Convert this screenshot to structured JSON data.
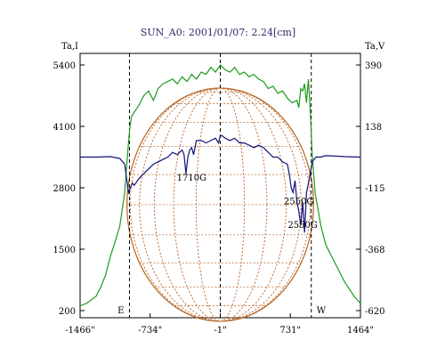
{
  "chart_data": {
    "type": "line",
    "title": "SUN_A0: 2001/01/07: 2.24[cm]",
    "left_axis": {
      "label": "Ta,I",
      "ticks": [
        5400,
        4100,
        2800,
        1500,
        200
      ],
      "range": [
        200,
        5400
      ]
    },
    "right_axis": {
      "label": "Ta,V",
      "ticks": [
        "390",
        "138",
        "-115",
        "-368",
        "-620"
      ],
      "range": [
        -620,
        390
      ]
    },
    "x_axis": {
      "ticks": [
        "-1466\"",
        "-734\"",
        "-1\"",
        "731\"",
        "1464\""
      ],
      "tick_values": [
        -1466,
        -734,
        -1,
        731,
        1464
      ],
      "range": [
        -1466,
        1464
      ]
    },
    "limb_markers": [
      {
        "label": "E",
        "x": -950
      },
      {
        "label": "W",
        "x": 950
      }
    ],
    "center_marker_x": -1,
    "disk_radius": 975,
    "annotations": [
      {
        "text": "1710G",
        "x": -300,
        "y": 2950
      },
      {
        "text": "2550G",
        "x": 820,
        "y": 2450
      },
      {
        "text": "2550G",
        "x": 860,
        "y": 1950
      }
    ],
    "series": [
      {
        "axis": "left",
        "color": "#1c9b1c",
        "x": [
          -1466,
          -1400,
          -1300,
          -1250,
          -1200,
          -1150,
          -1100,
          -1050,
          -1000,
          -970,
          -950,
          -930,
          -900,
          -850,
          -800,
          -750,
          -700,
          -650,
          -600,
          -550,
          -500,
          -450,
          -400,
          -350,
          -300,
          -250,
          -200,
          -150,
          -100,
          -50,
          -1,
          50,
          100,
          150,
          200,
          250,
          300,
          350,
          400,
          450,
          500,
          550,
          600,
          650,
          700,
          750,
          800,
          820,
          840,
          860,
          880,
          900,
          920,
          940,
          960,
          990,
          1050,
          1100,
          1200,
          1300,
          1400,
          1464
        ],
        "y": [
          300,
          350,
          500,
          700,
          950,
          1350,
          1650,
          2000,
          2700,
          3500,
          4000,
          4300,
          4400,
          4550,
          4750,
          4850,
          4650,
          4900,
          5000,
          5050,
          5100,
          5000,
          5150,
          5050,
          5200,
          5100,
          5250,
          5200,
          5350,
          5250,
          5400,
          5300,
          5250,
          5350,
          5200,
          5250,
          5150,
          5200,
          5100,
          5050,
          4900,
          4950,
          4800,
          4850,
          4700,
          4600,
          4650,
          4500,
          4900,
          4850,
          5000,
          4600,
          5100,
          4400,
          3500,
          2700,
          2000,
          1600,
          1200,
          800,
          500,
          350
        ]
      },
      {
        "axis": "left",
        "color": "#10107a",
        "x": [
          -1466,
          -1300,
          -1150,
          -1050,
          -1000,
          -980,
          -960,
          -940,
          -920,
          -900,
          -850,
          -800,
          -750,
          -700,
          -650,
          -600,
          -550,
          -500,
          -450,
          -400,
          -380,
          -360,
          -340,
          -320,
          -300,
          -280,
          -250,
          -200,
          -150,
          -100,
          -50,
          -20,
          -1,
          20,
          50,
          100,
          150,
          200,
          250,
          300,
          350,
          400,
          450,
          500,
          550,
          600,
          650,
          700,
          720,
          740,
          760,
          780,
          800,
          820,
          840,
          860,
          880,
          900,
          930,
          960,
          1000,
          1050,
          1100,
          1200,
          1300,
          1464
        ],
        "y": [
          3450,
          3450,
          3460,
          3420,
          3300,
          3000,
          2700,
          2800,
          2900,
          2850,
          3000,
          3100,
          3200,
          3300,
          3350,
          3400,
          3450,
          3550,
          3500,
          3600,
          3500,
          3100,
          3450,
          3600,
          3650,
          3500,
          3800,
          3800,
          3750,
          3800,
          3850,
          3750,
          3900,
          3900,
          3850,
          3800,
          3850,
          3750,
          3750,
          3700,
          3650,
          3700,
          3650,
          3550,
          3450,
          3450,
          3350,
          3300,
          3100,
          2800,
          2700,
          2950,
          2500,
          2300,
          2000,
          2500,
          1850,
          2700,
          3000,
          3350,
          3450,
          3450,
          3480,
          3470,
          3460,
          3450
        ]
      }
    ]
  }
}
